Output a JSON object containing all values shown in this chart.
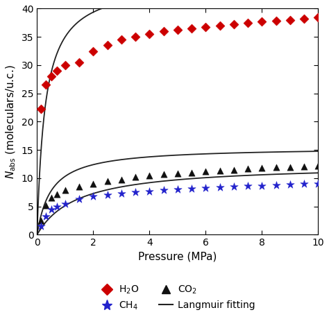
{
  "title": "",
  "xlabel": "Pressure (MPa)",
  "ylabel": "$N_{\\mathrm{abs}}$ (moleculars/u.c.)",
  "xlim": [
    0,
    10
  ],
  "ylim": [
    0,
    40
  ],
  "yticks": [
    0,
    5,
    10,
    15,
    20,
    25,
    30,
    35,
    40
  ],
  "xticks": [
    0,
    2,
    4,
    6,
    8,
    10
  ],
  "H2O_x": [
    0.15,
    0.3,
    0.5,
    0.7,
    1.0,
    1.5,
    2.0,
    2.5,
    3.0,
    3.5,
    4.0,
    4.5,
    5.0,
    5.5,
    6.0,
    6.5,
    7.0,
    7.5,
    8.0,
    8.5,
    9.0,
    9.5,
    10.0
  ],
  "H2O_y": [
    22.2,
    26.5,
    28.0,
    29.0,
    30.0,
    30.5,
    32.5,
    33.5,
    34.5,
    35.0,
    35.5,
    36.0,
    36.2,
    36.5,
    36.8,
    37.0,
    37.2,
    37.5,
    37.7,
    37.9,
    38.0,
    38.2,
    38.5
  ],
  "CO2_x": [
    0.15,
    0.3,
    0.5,
    0.7,
    1.0,
    1.5,
    2.0,
    2.5,
    3.0,
    3.5,
    4.0,
    4.5,
    5.0,
    5.5,
    6.0,
    6.5,
    7.0,
    7.5,
    8.0,
    8.5,
    9.0,
    9.5,
    10.0
  ],
  "CO2_y": [
    2.5,
    5.2,
    6.5,
    7.2,
    7.9,
    8.5,
    9.0,
    9.5,
    9.8,
    10.2,
    10.5,
    10.7,
    10.8,
    11.0,
    11.2,
    11.4,
    11.5,
    11.7,
    11.8,
    11.9,
    12.0,
    12.1,
    12.2
  ],
  "CH4_x": [
    0.15,
    0.3,
    0.5,
    0.7,
    1.0,
    1.5,
    2.0,
    2.5,
    3.0,
    3.5,
    4.0,
    4.5,
    5.0,
    5.5,
    6.0,
    6.5,
    7.0,
    7.5,
    8.0,
    8.5,
    9.0,
    9.5,
    10.0
  ],
  "CH4_y": [
    1.5,
    3.3,
    4.5,
    5.0,
    5.5,
    6.3,
    6.8,
    7.1,
    7.3,
    7.5,
    7.7,
    7.9,
    8.0,
    8.2,
    8.3,
    8.4,
    8.5,
    8.6,
    8.7,
    8.8,
    8.9,
    8.95,
    9.0
  ],
  "H2O_Nmax": 45.0,
  "H2O_b": 3.5,
  "CO2_Nmax": 15.5,
  "CO2_b": 2.0,
  "CH4_Nmax": 12.5,
  "CH4_b": 0.7,
  "color_H2O": "#cc0000",
  "color_CO2": "#111111",
  "color_CH4": "#2222cc",
  "color_langmuir": "#222222"
}
